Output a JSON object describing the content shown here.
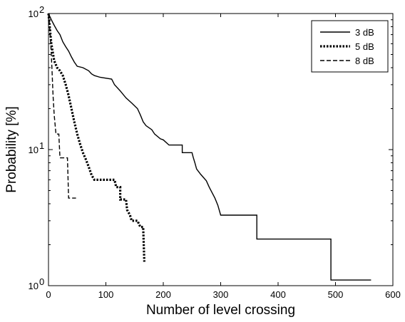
{
  "chart_data": {
    "type": "line",
    "xlabel": "Number of level crossing",
    "ylabel": "Probability [%]",
    "xlim": [
      0,
      600
    ],
    "ylim": [
      1,
      100
    ],
    "yscale": "log",
    "grid": false,
    "legend_position": "top-right",
    "x_ticks": [
      "0",
      "100",
      "200",
      "300",
      "400",
      "500",
      "600"
    ],
    "y_ticks": [
      {
        "value": 1,
        "base": "10",
        "exp": "0"
      },
      {
        "value": 10,
        "base": "10",
        "exp": "1"
      },
      {
        "value": 100,
        "base": "10",
        "exp": "2"
      }
    ],
    "series": [
      {
        "name": "3 dB",
        "style": "solid",
        "color": "#000000",
        "points": [
          [
            0,
            100
          ],
          [
            5,
            90
          ],
          [
            10,
            82
          ],
          [
            15,
            75
          ],
          [
            20,
            70
          ],
          [
            25,
            62
          ],
          [
            30,
            57
          ],
          [
            35,
            53
          ],
          [
            40,
            48
          ],
          [
            45,
            44
          ],
          [
            50,
            41
          ],
          [
            60,
            40
          ],
          [
            70,
            38
          ],
          [
            75,
            36
          ],
          [
            80,
            35
          ],
          [
            90,
            34
          ],
          [
            110,
            33
          ],
          [
            115,
            30
          ],
          [
            125,
            27
          ],
          [
            135,
            24
          ],
          [
            145,
            22
          ],
          [
            155,
            20
          ],
          [
            160,
            18
          ],
          [
            165,
            16
          ],
          [
            170,
            15
          ],
          [
            180,
            14
          ],
          [
            185,
            13
          ],
          [
            195,
            12
          ],
          [
            200,
            11.8
          ],
          [
            210,
            10.8
          ],
          [
            233,
            10.8
          ],
          [
            233,
            9.5
          ],
          [
            250,
            9.5
          ],
          [
            252,
            8.8
          ],
          [
            255,
            8.0
          ],
          [
            258,
            7.2
          ],
          [
            265,
            6.6
          ],
          [
            275,
            5.9
          ],
          [
            280,
            5.3
          ],
          [
            290,
            4.4
          ],
          [
            295,
            3.9
          ],
          [
            300,
            3.3
          ],
          [
            363,
            3.3
          ],
          [
            363,
            2.2
          ],
          [
            492,
            2.2
          ],
          [
            492,
            1.1
          ],
          [
            562,
            1.1
          ]
        ]
      },
      {
        "name": "5 dB",
        "style": "dotted",
        "color": "#000000",
        "points": [
          [
            0,
            100
          ],
          [
            5,
            60
          ],
          [
            10,
            45
          ],
          [
            15,
            40
          ],
          [
            20,
            38
          ],
          [
            25,
            35
          ],
          [
            30,
            30
          ],
          [
            35,
            25
          ],
          [
            40,
            20
          ],
          [
            45,
            16
          ],
          [
            50,
            13
          ],
          [
            55,
            11
          ],
          [
            60,
            9.5
          ],
          [
            65,
            8.5
          ],
          [
            70,
            7.5
          ],
          [
            75,
            6.5
          ],
          [
            80,
            6
          ],
          [
            115,
            6
          ],
          [
            118,
            5.3
          ],
          [
            125,
            5.3
          ],
          [
            125,
            4.3
          ],
          [
            135,
            4.3
          ],
          [
            137,
            3.6
          ],
          [
            142,
            3.3
          ],
          [
            145,
            3
          ],
          [
            155,
            3
          ],
          [
            160,
            2.7
          ],
          [
            165,
            2.7
          ],
          [
            167,
            1.5
          ]
        ]
      },
      {
        "name": "8 dB",
        "style": "dashed",
        "color": "#000000",
        "points": [
          [
            0,
            100
          ],
          [
            2,
            80
          ],
          [
            4,
            60
          ],
          [
            6,
            40
          ],
          [
            8,
            25
          ],
          [
            10,
            18
          ],
          [
            13,
            13
          ],
          [
            18,
            13
          ],
          [
            20,
            8.7
          ],
          [
            33,
            8.7
          ],
          [
            35,
            4.4
          ],
          [
            48,
            4.4
          ]
        ]
      }
    ]
  }
}
